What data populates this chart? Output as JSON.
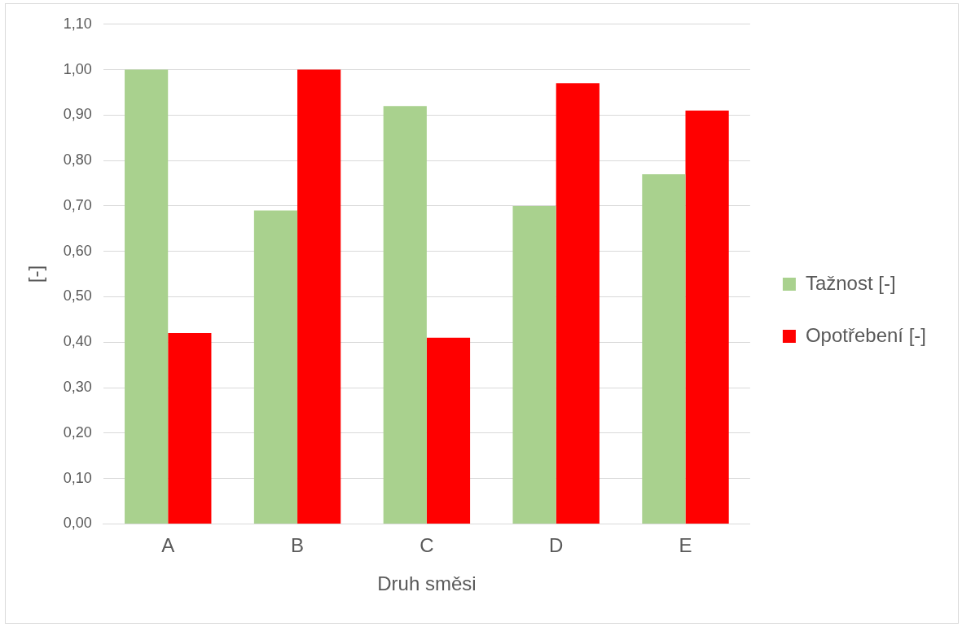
{
  "chart_data": {
    "type": "bar",
    "xlabel": "Druh směsi",
    "ylabel": "[-]",
    "categories": [
      "A",
      "B",
      "C",
      "D",
      "E"
    ],
    "series": [
      {
        "name": "Tažnost [-]",
        "color": "#a9d18e",
        "values": [
          1.0,
          0.69,
          0.92,
          0.7,
          0.77
        ]
      },
      {
        "name": "Opotřebení [-]",
        "color": "#ff0000",
        "values": [
          0.42,
          1.0,
          0.41,
          0.97,
          0.91
        ]
      }
    ],
    "ylim": [
      0,
      1.1
    ],
    "yticks": [
      {
        "value": 0,
        "label": "0,00"
      },
      {
        "value": 0.1,
        "label": "0,10"
      },
      {
        "value": 0.2,
        "label": "0,20"
      },
      {
        "value": 0.3,
        "label": "0,30"
      },
      {
        "value": 0.4,
        "label": "0,40"
      },
      {
        "value": 0.5,
        "label": "0,50"
      },
      {
        "value": 0.6,
        "label": "0,60"
      },
      {
        "value": 0.7,
        "label": "0,70"
      },
      {
        "value": 0.8,
        "label": "0,80"
      },
      {
        "value": 0.9,
        "label": "0,90"
      },
      {
        "value": 1.0,
        "label": "1,00"
      },
      {
        "value": 1.1,
        "label": "1,10"
      }
    ],
    "grid": "y",
    "legend": "right"
  }
}
